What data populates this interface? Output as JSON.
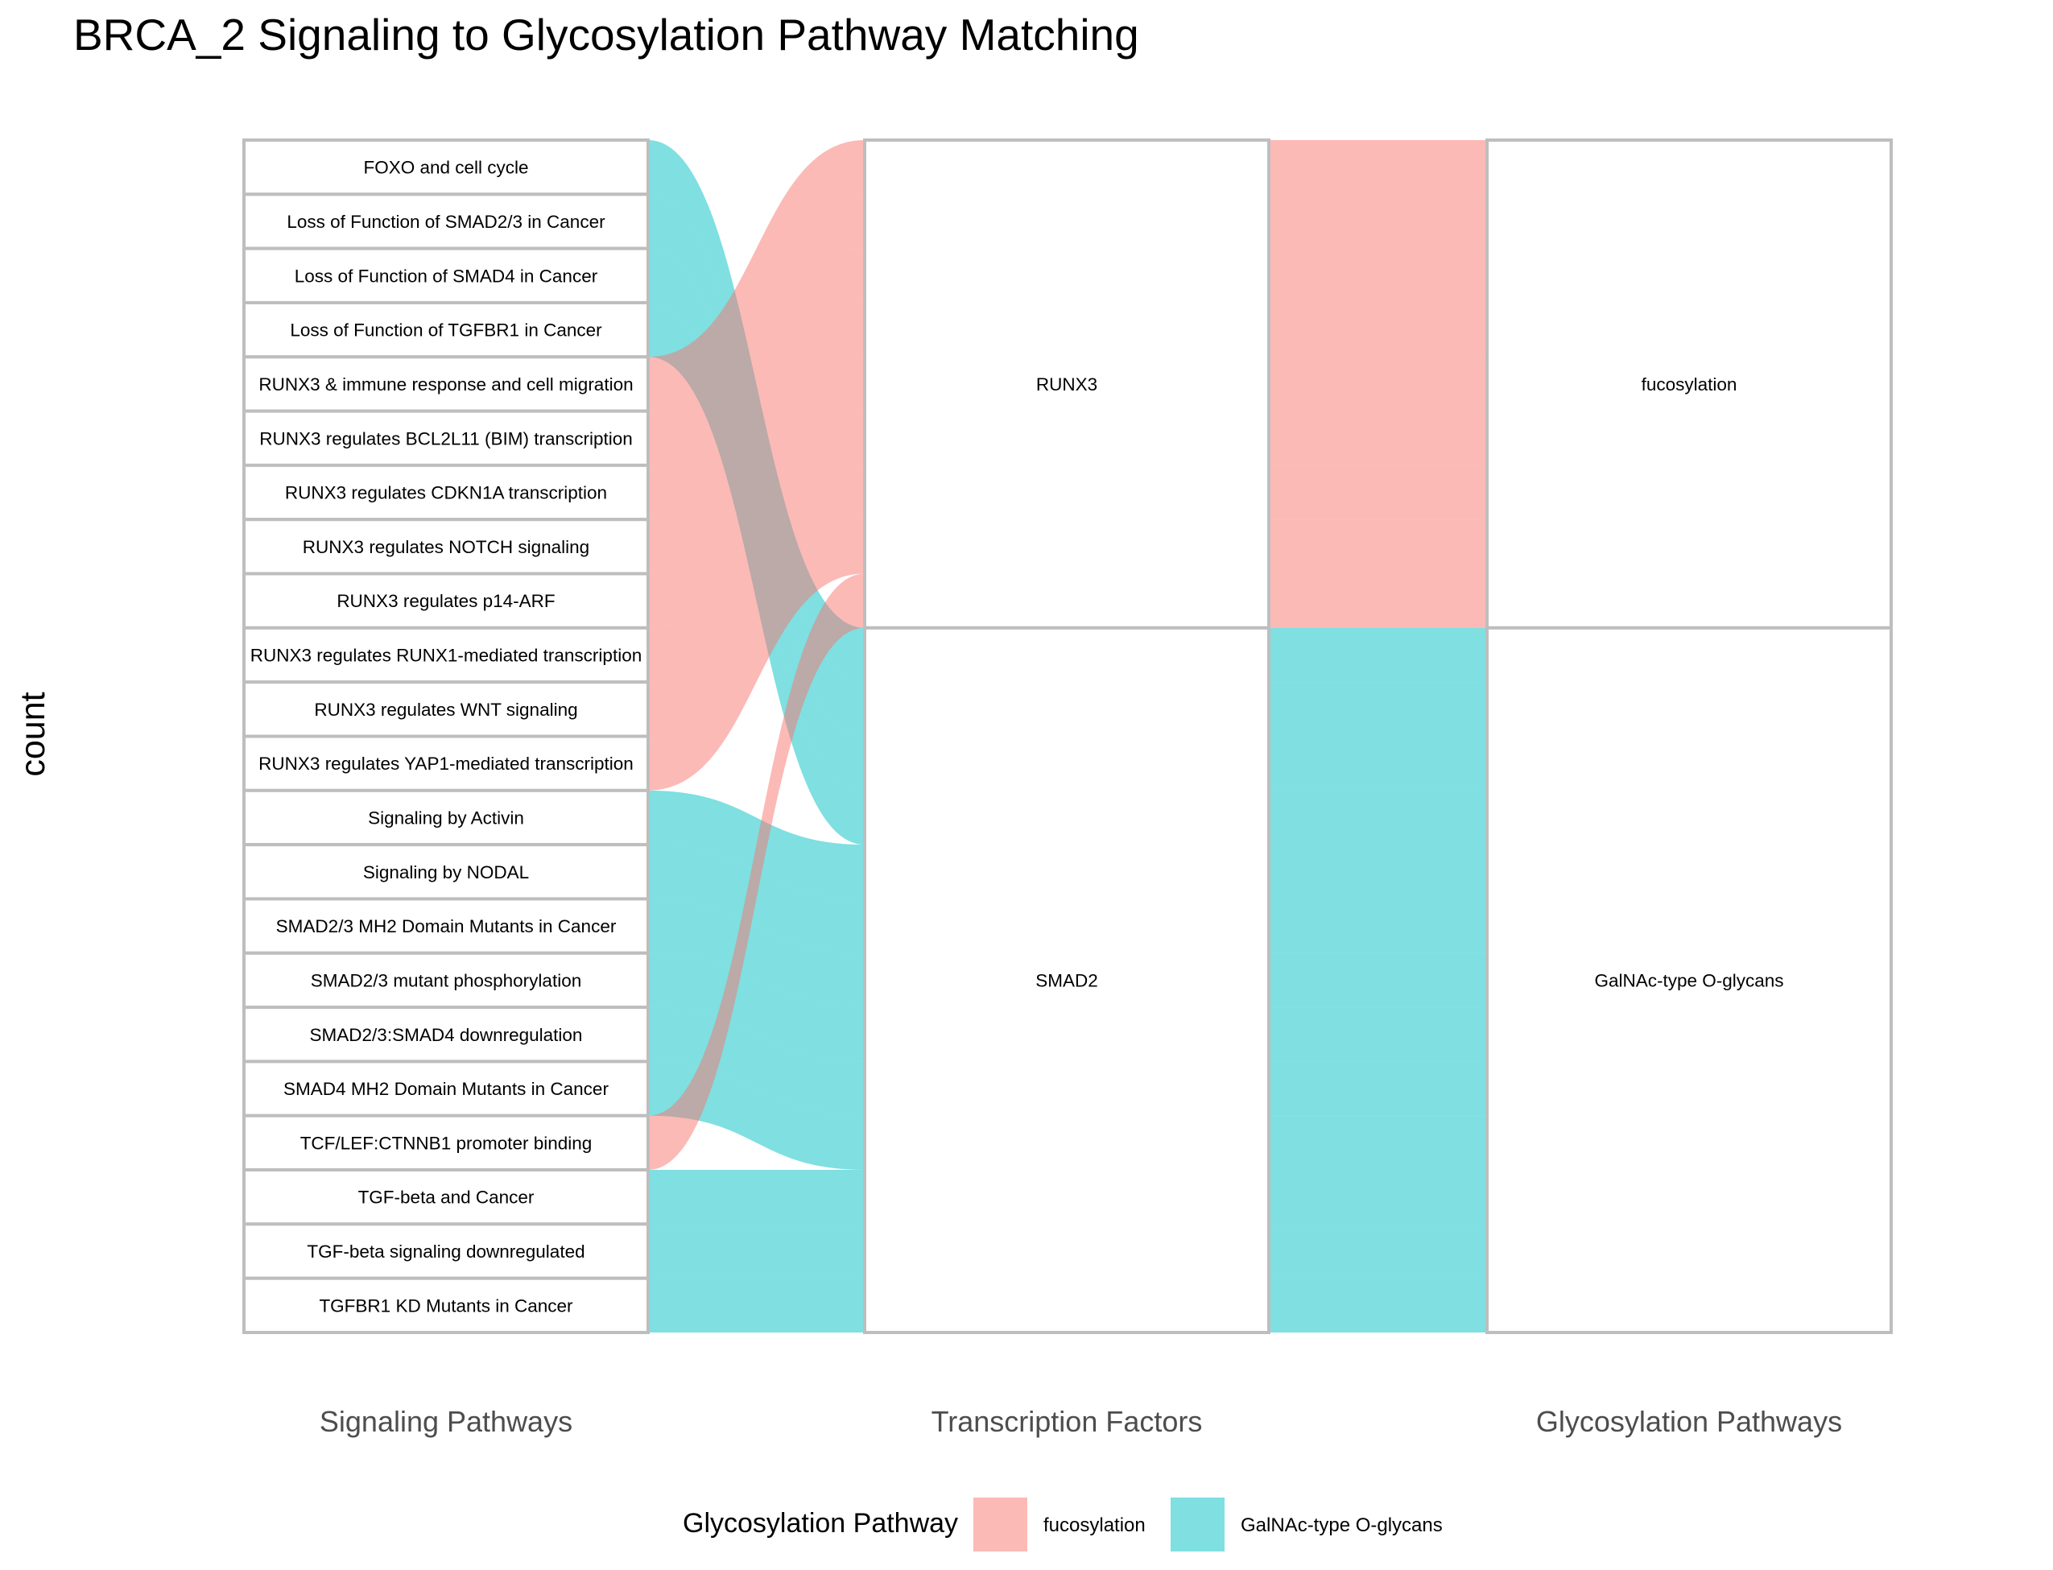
{
  "colors": {
    "fucosylation": "#F8766D",
    "GalNAc-type O-glycans": "#00BFC4",
    "box_stroke": "#BEBEBE",
    "axis_text": "#4D4D4D"
  },
  "chart_data": {
    "type": "alluvial",
    "title": "BRCA_2 Signaling to Glycosylation Pathway Matching",
    "ylabel": "count",
    "axes": [
      "Signaling Pathways",
      "Transcription Factors",
      "Glycosylation Pathways"
    ],
    "legend": {
      "title": "Glycosylation Pathway",
      "position": "bottom",
      "items": [
        "fucosylation",
        "GalNAc-type O-glycans"
      ]
    },
    "nodes": {
      "signaling": [
        "FOXO and cell cycle",
        "Loss of Function of SMAD2/3 in Cancer",
        "Loss of Function of SMAD4 in Cancer",
        "Loss of Function of TGFBR1 in Cancer",
        "RUNX3 & immune response and cell migration",
        "RUNX3 regulates BCL2L11 (BIM) transcription",
        "RUNX3 regulates CDKN1A transcription",
        "RUNX3 regulates NOTCH signaling",
        "RUNX3 regulates p14-ARF",
        "RUNX3 regulates RUNX1-mediated transcription",
        "RUNX3 regulates WNT signaling",
        "RUNX3 regulates YAP1-mediated transcription",
        "Signaling by Activin",
        "Signaling by NODAL",
        "SMAD2/3 MH2 Domain Mutants in Cancer",
        "SMAD2/3 mutant phosphorylation",
        "SMAD2/3:SMAD4 downregulation",
        "SMAD4 MH2 Domain Mutants in Cancer",
        "TCF/LEF:CTNNB1 promoter binding",
        "TGF-beta and Cancer",
        "TGF-beta signaling downregulated",
        "TGFBR1 KD Mutants in Cancer"
      ],
      "transcription_factors": [
        "RUNX3",
        "SMAD2"
      ],
      "glycosylation": [
        "fucosylation",
        "GalNAc-type O-glycans"
      ]
    },
    "flows": [
      {
        "signaling": "FOXO and cell cycle",
        "tf": "SMAD2",
        "glyco": "GalNAc-type O-glycans",
        "count": 1
      },
      {
        "signaling": "Loss of Function of SMAD2/3 in Cancer",
        "tf": "SMAD2",
        "glyco": "GalNAc-type O-glycans",
        "count": 1
      },
      {
        "signaling": "Loss of Function of SMAD4 in Cancer",
        "tf": "SMAD2",
        "glyco": "GalNAc-type O-glycans",
        "count": 1
      },
      {
        "signaling": "Loss of Function of TGFBR1 in Cancer",
        "tf": "SMAD2",
        "glyco": "GalNAc-type O-glycans",
        "count": 1
      },
      {
        "signaling": "RUNX3 & immune response and cell migration",
        "tf": "RUNX3",
        "glyco": "fucosylation",
        "count": 1
      },
      {
        "signaling": "RUNX3 regulates BCL2L11 (BIM) transcription",
        "tf": "RUNX3",
        "glyco": "fucosylation",
        "count": 1
      },
      {
        "signaling": "RUNX3 regulates CDKN1A transcription",
        "tf": "RUNX3",
        "glyco": "fucosylation",
        "count": 1
      },
      {
        "signaling": "RUNX3 regulates NOTCH signaling",
        "tf": "RUNX3",
        "glyco": "fucosylation",
        "count": 1
      },
      {
        "signaling": "RUNX3 regulates p14-ARF",
        "tf": "RUNX3",
        "glyco": "fucosylation",
        "count": 1
      },
      {
        "signaling": "RUNX3 regulates RUNX1-mediated transcription",
        "tf": "RUNX3",
        "glyco": "fucosylation",
        "count": 1
      },
      {
        "signaling": "RUNX3 regulates WNT signaling",
        "tf": "RUNX3",
        "glyco": "fucosylation",
        "count": 1
      },
      {
        "signaling": "RUNX3 regulates YAP1-mediated transcription",
        "tf": "RUNX3",
        "glyco": "fucosylation",
        "count": 1
      },
      {
        "signaling": "Signaling by Activin",
        "tf": "SMAD2",
        "glyco": "GalNAc-type O-glycans",
        "count": 1
      },
      {
        "signaling": "Signaling by NODAL",
        "tf": "SMAD2",
        "glyco": "GalNAc-type O-glycans",
        "count": 1
      },
      {
        "signaling": "SMAD2/3 MH2 Domain Mutants in Cancer",
        "tf": "SMAD2",
        "glyco": "GalNAc-type O-glycans",
        "count": 1
      },
      {
        "signaling": "SMAD2/3 mutant phosphorylation",
        "tf": "SMAD2",
        "glyco": "GalNAc-type O-glycans",
        "count": 1
      },
      {
        "signaling": "SMAD2/3:SMAD4 downregulation",
        "tf": "SMAD2",
        "glyco": "GalNAc-type O-glycans",
        "count": 1
      },
      {
        "signaling": "SMAD4 MH2 Domain Mutants in Cancer",
        "tf": "SMAD2",
        "glyco": "GalNAc-type O-glycans",
        "count": 1
      },
      {
        "signaling": "TCF/LEF:CTNNB1 promoter binding",
        "tf": "RUNX3",
        "glyco": "fucosylation",
        "count": 1
      },
      {
        "signaling": "TGF-beta and Cancer",
        "tf": "SMAD2",
        "glyco": "GalNAc-type O-glycans",
        "count": 1
      },
      {
        "signaling": "TGF-beta signaling downregulated",
        "tf": "SMAD2",
        "glyco": "GalNAc-type O-glycans",
        "count": 1
      },
      {
        "signaling": "TGFBR1 KD Mutants in Cancer",
        "tf": "SMAD2",
        "glyco": "GalNAc-type O-glycans",
        "count": 1
      }
    ]
  }
}
